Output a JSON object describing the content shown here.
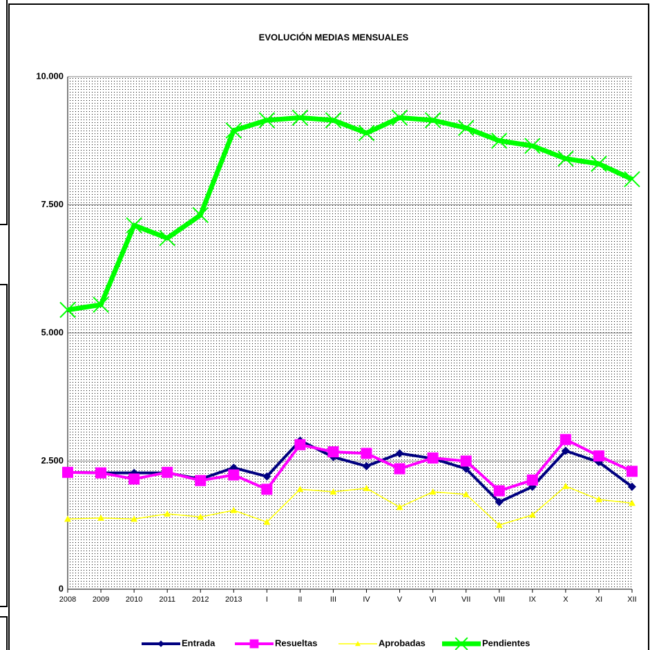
{
  "chart_data": {
    "type": "line",
    "title": "EVOLUCIÓN MEDIAS MENSUALES",
    "categories": [
      "2008",
      "2009",
      "2010",
      "2011",
      "2012",
      "2013",
      "I",
      "II",
      "III",
      "IV",
      "V",
      "VI",
      "VII",
      "VIII",
      "IX",
      "X",
      "XI",
      "XII"
    ],
    "series": [
      {
        "name": "Entrada",
        "color": "#000080",
        "marker": "diamond",
        "values": [
          2280,
          2270,
          2270,
          2270,
          2150,
          2370,
          2200,
          2900,
          2580,
          2400,
          2650,
          2550,
          2350,
          1700,
          2000,
          2700,
          2480,
          2000
        ]
      },
      {
        "name": "Resueltas",
        "color": "#ff00ff",
        "marker": "square",
        "values": [
          2280,
          2270,
          2150,
          2280,
          2120,
          2230,
          1950,
          2820,
          2680,
          2650,
          2350,
          2560,
          2500,
          1920,
          2130,
          2920,
          2600,
          2300
        ]
      },
      {
        "name": "Aprobadas",
        "color": "#ffff00",
        "marker": "triangle",
        "values": [
          1370,
          1390,
          1370,
          1470,
          1410,
          1540,
          1310,
          1950,
          1900,
          1970,
          1600,
          1900,
          1850,
          1250,
          1450,
          2010,
          1750,
          1680
        ]
      },
      {
        "name": "Pendientes",
        "color": "#00ff00",
        "marker": "x",
        "values": [
          5450,
          5550,
          7100,
          6850,
          7300,
          8950,
          9150,
          9200,
          9150,
          8900,
          9200,
          9150,
          9000,
          8750,
          8650,
          8400,
          8300,
          8000
        ]
      }
    ],
    "ylim": [
      0,
      10000
    ],
    "yticks": [
      0,
      {
        "value": 2500,
        "label": "2.500"
      },
      {
        "value": 5000,
        "label": "5.000"
      },
      {
        "value": 7500,
        "label": "7.500"
      },
      {
        "value": 10000,
        "label": "10.000"
      }
    ],
    "grid": true,
    "legend": "bottom"
  }
}
